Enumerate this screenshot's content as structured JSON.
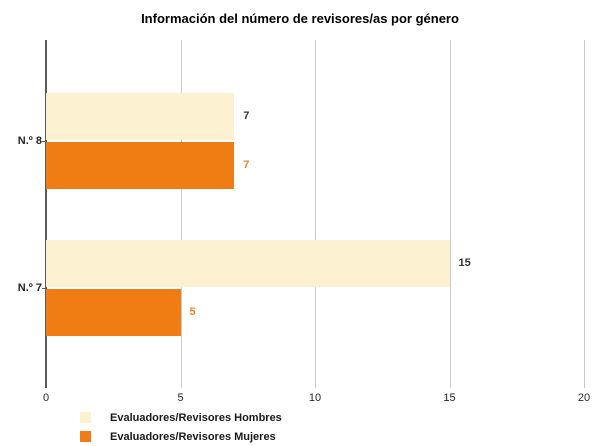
{
  "title": "Información del número de revisores/as por género",
  "chart_data": {
    "type": "bar",
    "orientation": "horizontal",
    "title": "Información del número de revisores/as por género",
    "categories": [
      "N.º 8",
      "N.º 7"
    ],
    "series": [
      {
        "name": "Evaluadores/Revisores Hombres",
        "values": [
          7,
          15
        ],
        "color": "#FCF1D0",
        "label_color": "#333333"
      },
      {
        "name": "Evaluadores/Revisores Mujeres",
        "values": [
          7,
          5
        ],
        "color": "#EF7D13",
        "label_color": "#F0821C"
      }
    ],
    "xlabel": "",
    "ylabel": "",
    "xlim": [
      0,
      20
    ],
    "xticks": [
      0,
      5,
      10,
      15,
      20
    ],
    "grid": "vertical-gridlines",
    "legend_position": "bottom-left",
    "axis_color": "#595959",
    "gridline_color": "#CCCCCC",
    "text_color": "#262626",
    "background_color": "#FFFFFF"
  }
}
